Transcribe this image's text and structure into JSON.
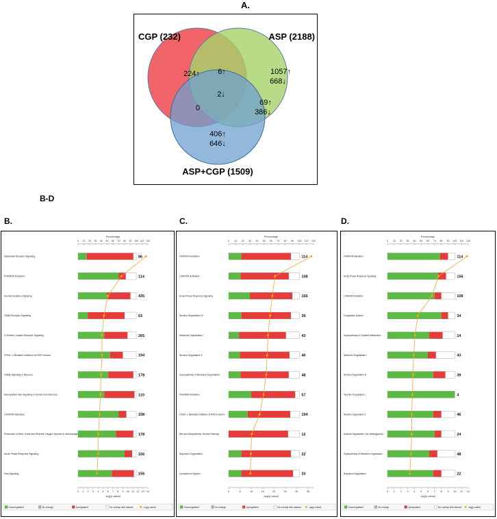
{
  "figure": {
    "label_a": "A.",
    "label_bd": "B-D",
    "label_b": "B.",
    "label_c": "C.",
    "label_d": "D."
  },
  "venn": {
    "sets": [
      {
        "label": "CGP (232)",
        "color": "#f0545a"
      },
      {
        "label": "ASP (2188)",
        "color": "#a6d26a"
      },
      {
        "label": "ASP+CGP (1509)",
        "color": "#6fa0cf"
      }
    ],
    "regions": {
      "cgp_only": "224↑",
      "cgp_asp": "6↑",
      "asp_up": "1057↑",
      "asp_down": "668↓",
      "all_three": "2↓",
      "cgp_combo": "0",
      "asp_combo_up": "69↑",
      "asp_combo_down": "386↓",
      "combo_up": "406↑",
      "combo_down": "646↓"
    }
  },
  "colors": {
    "down": "#5cb944",
    "up": "#e63b3b",
    "line": "#f5a623",
    "nochange": "#b0b0b0"
  },
  "legend": {
    "down": "Downregulated",
    "nochange": "No change",
    "up": "Upregulated",
    "nooverlap": "No overlap with dataset",
    "line": "-log(p-value)"
  },
  "chart_data": [
    {
      "type": "bar",
      "panel": "B.",
      "top_axis_label": "Percentage",
      "bottom_axis_label": "-log(p-value)",
      "pct_ticks": [
        "0",
        "10",
        "20",
        "30",
        "40",
        "50",
        "60",
        "70",
        "80",
        "90",
        "100",
        "110",
        "120"
      ],
      "p_ticks": [
        "0",
        "1",
        "2",
        "3",
        "4",
        "5",
        "6",
        "7",
        "8",
        "9",
        "10",
        "11",
        "12",
        "13",
        "14"
      ],
      "pct_max": 120,
      "p_max": 14,
      "categories": [
        "Glutamate Receptor Signaling",
        "PXR/RXR Activation",
        "Axonal Guidance Signaling",
        "GABA Receptor Signaling",
        "G-Protein Coupled Receptor Signaling",
        "LPS/IL-1 Mediated Inhibition of RXR Function",
        "CREB Signaling in Neurons",
        "Neuropathic Pain Signaling In Dorsal Horn Neurons",
        "LXR/RXR Activation",
        "Production of Nitric Oxide and Reactive Oxygen Species in Macrophages",
        "Acute Phase Response Signaling",
        "Gαq Signaling"
      ],
      "down_pct": [
        15,
        70,
        50,
        17,
        45,
        55,
        52,
        45,
        70,
        65,
        80,
        58
      ],
      "up_pct": [
        80,
        12,
        40,
        63,
        40,
        22,
        43,
        52,
        13,
        30,
        13,
        38
      ],
      "totals": [
        "86",
        "114",
        "435",
        "63",
        "265",
        "194",
        "178",
        "110",
        "108",
        "178",
        "156",
        "156"
      ],
      "neglog_p": [
        13.6,
        8.7,
        6.0,
        5.2,
        4.8,
        4.8,
        4.6,
        4.5,
        4.3,
        4.1,
        4.0,
        3.8
      ]
    },
    {
      "type": "bar",
      "panel": "C.",
      "top_axis_label": "Percentage",
      "bottom_axis_label": "-log(p-value)",
      "pct_ticks": [
        "0",
        "10",
        "20",
        "30",
        "40",
        "50",
        "60",
        "70",
        "80",
        "90",
        "100",
        "110",
        "120"
      ],
      "p_ticks": [
        "0",
        "5",
        "10",
        "15",
        "20",
        "25",
        "30",
        "35"
      ],
      "pct_max": 120,
      "p_max": 37.5,
      "categories": [
        "FXR/RXR Activation",
        "LXR/RXR Activation",
        "Acute Phase Response Signaling",
        "Nicotine Degradation III",
        "Melatonin Degradation I",
        "Nicotine Degradation II",
        "Superpathway of Melatonin Degradation",
        "PXR/RXR Activation",
        "LPS/IL-1 Mediated Inhibition of RXR Function",
        "Bile Acid Biosynthesis, Neutral Pathway",
        "Bupropion Degradation",
        "Complement System"
      ],
      "down_pct": [
        18,
        17,
        30,
        18,
        15,
        16,
        17,
        32,
        27,
        0,
        18,
        18
      ],
      "up_pct": [
        70,
        68,
        60,
        70,
        66,
        70,
        68,
        62,
        60,
        84,
        70,
        73
      ],
      "totals": [
        "114",
        "108",
        "156",
        "39",
        "43",
        "46",
        "48",
        "57",
        "194",
        "12",
        "22",
        "33"
      ],
      "neglog_p": [
        36.5,
        20.5,
        19.3,
        18.3,
        17.4,
        17.0,
        16.6,
        15.4,
        13.7,
        10.2,
        9.8,
        9.6
      ]
    },
    {
      "type": "bar",
      "panel": "D.",
      "top_axis_label": "Percentage",
      "bottom_axis_label": "-log(p-value)",
      "pct_ticks": [
        "0",
        "10",
        "20",
        "30",
        "40",
        "50",
        "60",
        "70",
        "80",
        "90",
        "100",
        "110",
        "120"
      ],
      "p_ticks": [
        "0",
        "1",
        "2",
        "3",
        "4",
        "5",
        "6",
        "7",
        "8",
        "9",
        "10",
        "11",
        "12"
      ],
      "pct_max": 120,
      "p_max": 12,
      "categories": [
        "FXR/RXR Activation",
        "Acute Phase Response Signaling",
        "LXR/RXR Activation",
        "Coagulation System",
        "Superpathway of Citrulline Metabolism",
        "Melatonin Degradation I",
        "Nicotine Degradation III",
        "Tyrosine Degradation I",
        "Nicotine Degradation II",
        "Acetone Degradation I (to Methylglyoxal)",
        "Superpathway of Melatonin Degradation",
        "Bupropion Degradation"
      ],
      "down_pct": [
        78,
        75,
        70,
        80,
        62,
        60,
        68,
        100,
        68,
        70,
        62,
        68
      ],
      "up_pct": [
        12,
        12,
        10,
        10,
        20,
        12,
        18,
        0,
        12,
        10,
        12,
        12
      ],
      "totals": [
        "114",
        "156",
        "108",
        "34",
        "14",
        "43",
        "39",
        "4",
        "46",
        "24",
        "48",
        "22"
      ],
      "neglog_p": [
        11.8,
        7.6,
        6.6,
        4.5,
        4.1,
        3.9,
        3.8,
        3.7,
        3.6,
        3.6,
        3.5,
        3.3
      ]
    }
  ]
}
